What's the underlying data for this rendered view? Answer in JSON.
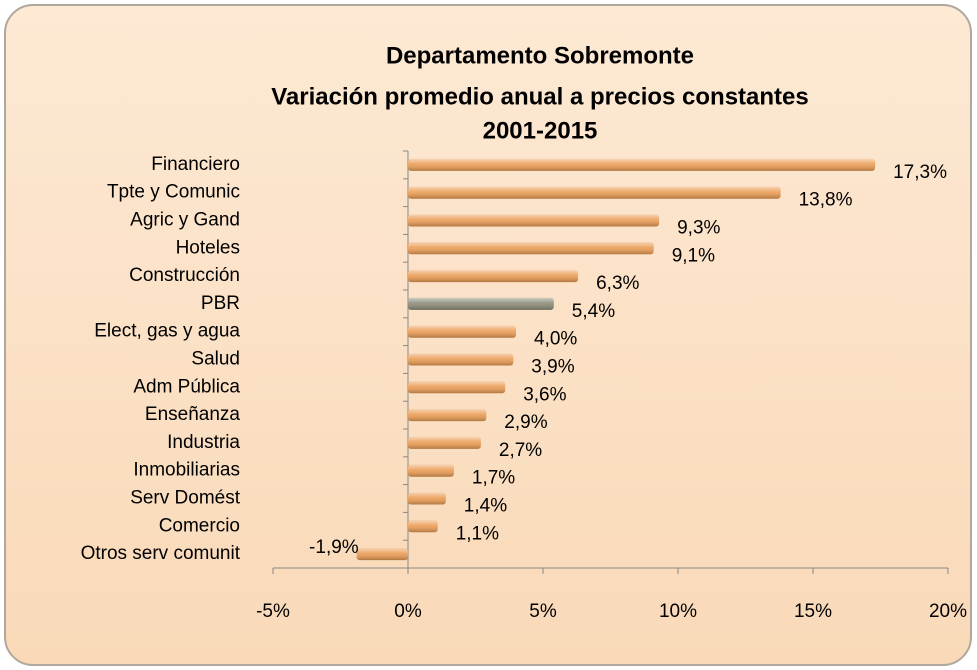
{
  "chart_data": {
    "type": "hbar",
    "title": [
      "Departamento Sobremonte",
      "Variación promedio anual a precios constantes",
      "2001-2015"
    ],
    "categories": [
      "Financiero",
      "Tpte y Comunic",
      "Agric y Gand",
      "Hoteles",
      "Construcción",
      "PBR",
      "Elect, gas y agua",
      "Salud",
      "Adm Pública",
      "Enseñanza",
      "Industria",
      "Inmobiliarias",
      "Serv Domést",
      "Comercio",
      "Otros serv comunit"
    ],
    "values": [
      17.3,
      13.8,
      9.3,
      9.1,
      6.3,
      5.4,
      4.0,
      3.9,
      3.6,
      2.9,
      2.7,
      1.7,
      1.4,
      1.1,
      -1.9
    ],
    "value_labels": [
      "17,3%",
      "13,8%",
      "9,3%",
      "9,1%",
      "6,3%",
      "5,4%",
      "4,0%",
      "3,9%",
      "3,6%",
      "2,9%",
      "2,7%",
      "1,7%",
      "1,4%",
      "1,1%",
      "-1,9%"
    ],
    "colors": [
      "#eb9d55",
      "#eb9d55",
      "#eb9d55",
      "#eb9d55",
      "#eb9d55",
      "#8c8b78",
      "#eb9d55",
      "#eb9d55",
      "#eb9d55",
      "#eb9d55",
      "#eb9d55",
      "#eb9d55",
      "#eb9d55",
      "#eb9d55",
      "#eb9d55"
    ],
    "xlim": [
      -5,
      20
    ],
    "xticks": [
      {
        "value": -5,
        "label": "-5%"
      },
      {
        "value": 0,
        "label": "0%"
      },
      {
        "value": 5,
        "label": "5%"
      },
      {
        "value": 10,
        "label": "10%"
      },
      {
        "value": 15,
        "label": "15%"
      },
      {
        "value": 20,
        "label": "20%"
      }
    ]
  }
}
